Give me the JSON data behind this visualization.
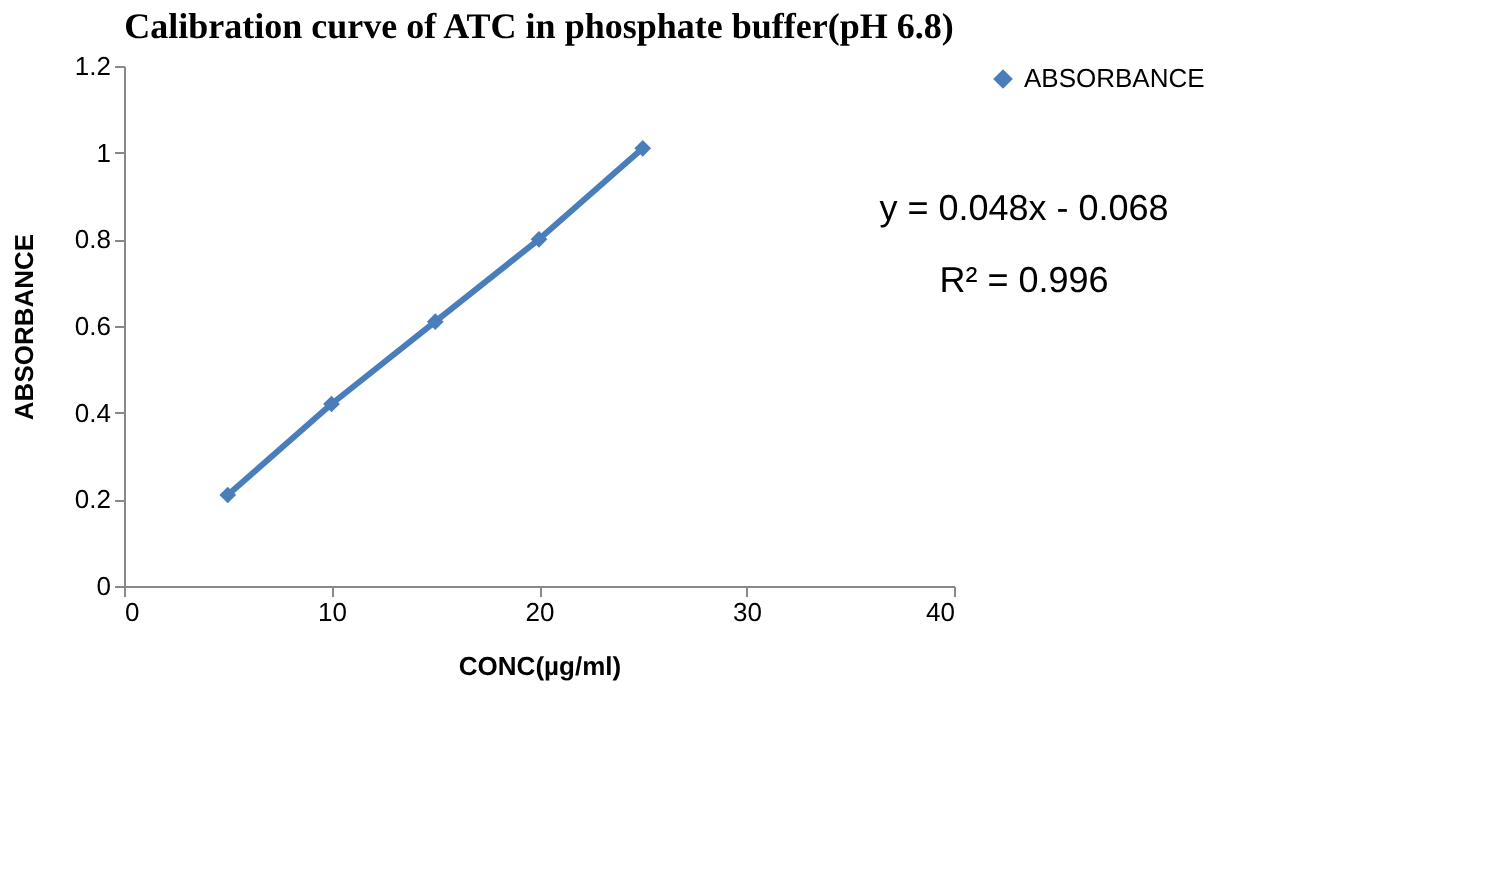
{
  "chart_data": {
    "type": "line",
    "title": "Calibration curve of ATC in phosphate buffer(pH 6.8)",
    "xlabel": "CONC(µg/ml)",
    "ylabel": "ABSORBANCE",
    "x": [
      5,
      10,
      15,
      20,
      25
    ],
    "series": [
      {
        "name": "ABSORBANCE",
        "color": "#4a7ebb",
        "values": [
          0.21,
          0.42,
          0.61,
          0.8,
          1.01
        ]
      }
    ],
    "xlim": [
      0,
      40
    ],
    "xticks": [
      0,
      10,
      20,
      30,
      40
    ],
    "ylim": [
      0,
      1.2
    ],
    "yticks": [
      0,
      0.2,
      0.4,
      0.6,
      0.8,
      1,
      1.2
    ],
    "annotations": [
      "y = 0.048x - 0.068",
      "R² = 0.996"
    ],
    "grid": false,
    "legend": "right",
    "marker": "diamond",
    "line_style": "solid"
  }
}
